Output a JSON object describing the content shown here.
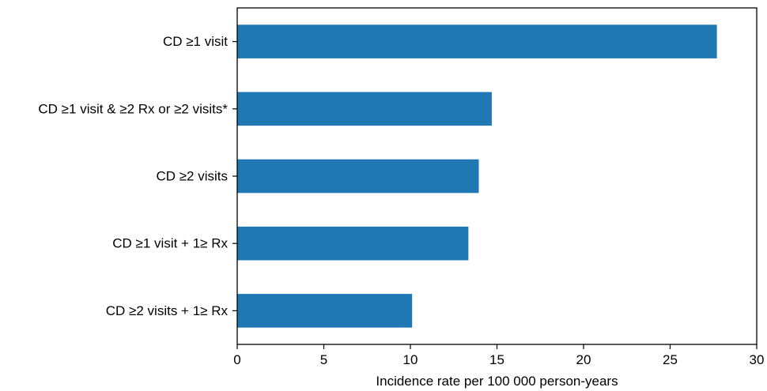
{
  "chart_data": {
    "type": "bar",
    "orientation": "horizontal",
    "categories": [
      "CD ≥1 visit",
      "CD ≥1 visit & ≥2 Rx or ≥2 visits*",
      "CD ≥2 visits",
      "CD ≥1 visit + 1≥ Rx",
      "CD ≥2 visits + 1≥ Rx"
    ],
    "values": [
      27.7,
      14.7,
      13.95,
      13.35,
      10.1
    ],
    "title": "",
    "xlabel": "Incidence rate per 100 000 person-years",
    "ylabel": "",
    "xlim": [
      0,
      30
    ],
    "xticks": [
      0,
      5,
      10,
      15,
      20,
      25,
      30
    ],
    "xtick_labels": [
      "0",
      "5",
      "10",
      "15",
      "20",
      "25",
      "30"
    ],
    "grid": false,
    "legend": "none",
    "bar_color": "#1f77b4"
  }
}
